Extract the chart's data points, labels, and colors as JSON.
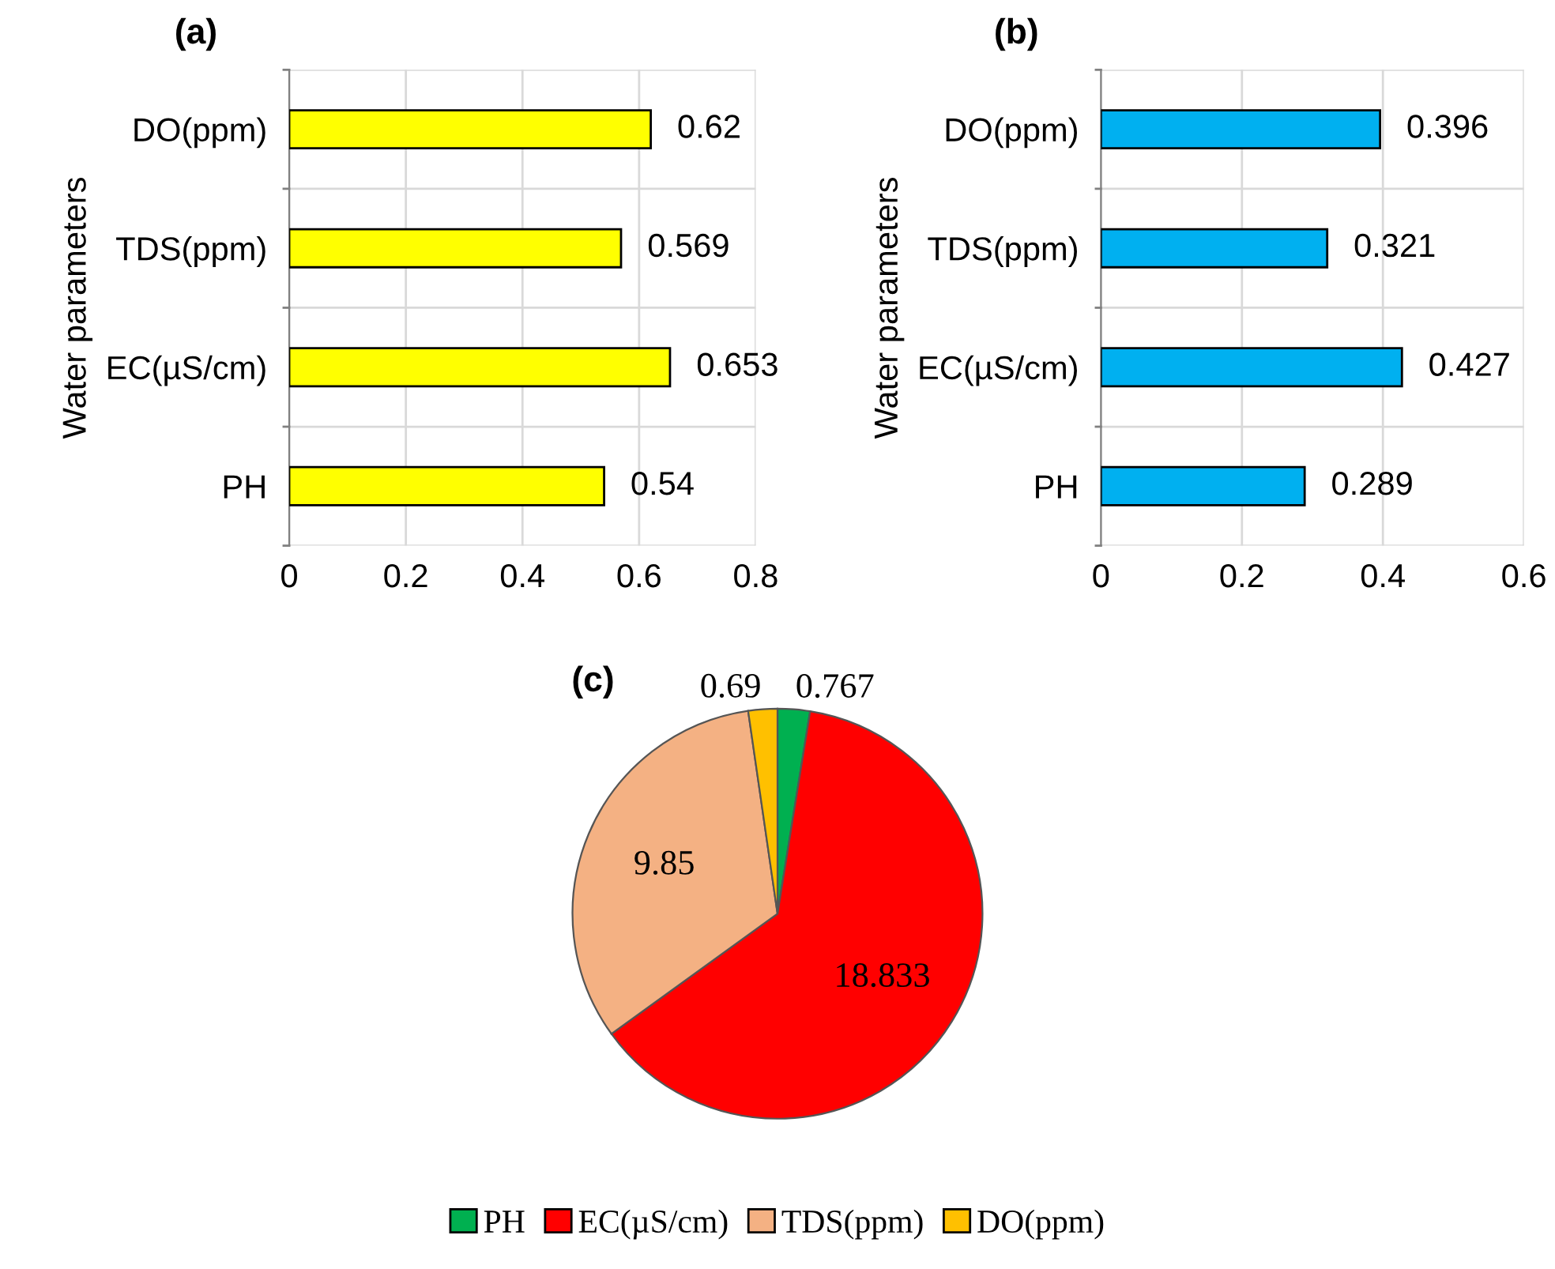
{
  "chart_data": [
    {
      "type": "bar",
      "orientation": "horizontal",
      "title": "(a)",
      "ylabel": "Water parameters",
      "categories": [
        "DO(ppm)",
        "TDS(ppm)",
        "EC(µS/cm)",
        "PH"
      ],
      "series": [
        {
          "color": "#ffff00",
          "values": [
            0.62,
            0.569,
            0.653,
            0.54
          ]
        }
      ],
      "xlim": [
        0,
        0.8
      ],
      "xticks": [
        0,
        0.2,
        0.4,
        0.6,
        0.8
      ],
      "grid": true,
      "data_labels": true
    },
    {
      "type": "bar",
      "orientation": "horizontal",
      "title": "(b)",
      "ylabel": "Water parameters",
      "categories": [
        "DO(ppm)",
        "TDS(ppm)",
        "EC(µS/cm)",
        "PH"
      ],
      "series": [
        {
          "color": "#00b0f0",
          "values": [
            0.396,
            0.321,
            0.427,
            0.289
          ]
        }
      ],
      "xlim": [
        0,
        0.6
      ],
      "xticks": [
        0,
        0.2,
        0.4,
        0.6
      ],
      "grid": true,
      "data_labels": true
    },
    {
      "type": "pie",
      "title": "(c)",
      "categories": [
        "PH",
        "EC(µS/cm)",
        "TDS(ppm)",
        "DO(ppm)"
      ],
      "values": [
        0.767,
        18.833,
        9.85,
        0.69
      ],
      "colors": [
        "#00b050",
        "#ff0000",
        "#f4b183",
        "#ffc000"
      ],
      "legend": "bottom",
      "data_labels": true
    }
  ]
}
